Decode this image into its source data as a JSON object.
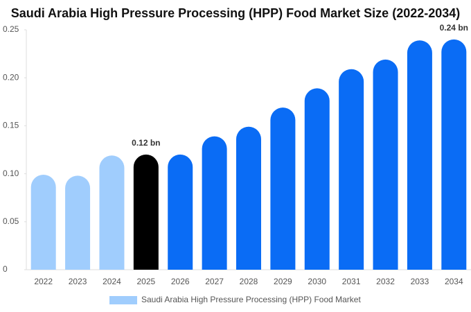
{
  "chart_data": {
    "type": "bar",
    "title": "Saudi Arabia High Pressure Processing (HPP) Food Market Size (2022-2034)",
    "categories": [
      "2022",
      "2023",
      "2024",
      "2025",
      "2026",
      "2027",
      "2028",
      "2029",
      "2030",
      "2031",
      "2032",
      "2033",
      "2034"
    ],
    "series": [
      {
        "name": "Saudi Arabia High Pressure Processing (HPP) Food Market",
        "color": "#a0cdfd",
        "values": [
          0.099,
          0.098,
          0.119,
          0.12,
          0.12,
          0.139,
          0.149,
          0.169,
          0.189,
          0.209,
          0.219,
          0.239,
          0.24
        ],
        "value_labels": [
          null,
          null,
          null,
          "0.12 bn",
          null,
          null,
          null,
          null,
          null,
          null,
          null,
          null,
          "0.24 bn"
        ],
        "colors": [
          "#a0cdfd",
          "#a0cdfd",
          "#a0cdfd",
          "#000000",
          "#0a6cf5",
          "#0a6cf5",
          "#0a6cf5",
          "#0a6cf5",
          "#0a6cf5",
          "#0a6cf5",
          "#0a6cf5",
          "#0a6cf5",
          "#0a6cf5"
        ]
      }
    ],
    "ylim": [
      0,
      0.25
    ],
    "yticks": [
      0,
      0.05,
      {
        "value": 0.1,
        "label": "0.10"
      },
      0.15,
      {
        "value": 0.2,
        "label": "0.20"
      },
      0.25
    ],
    "grid": false
  }
}
